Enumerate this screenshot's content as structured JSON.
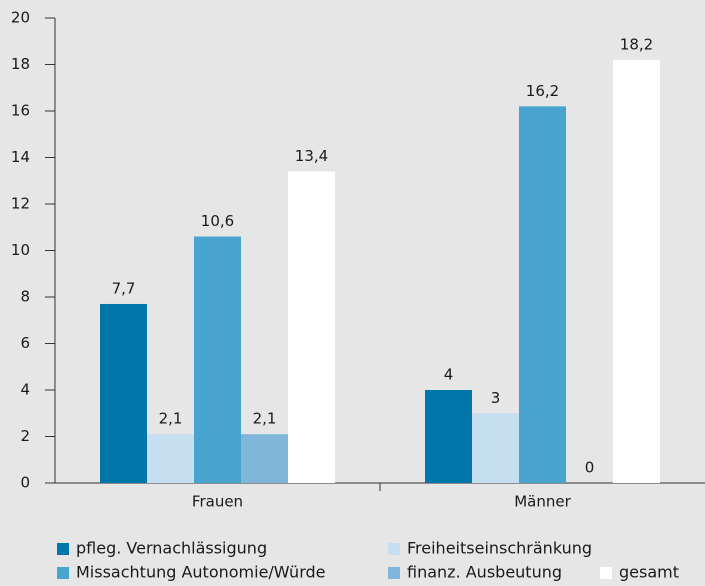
{
  "chart_data": {
    "type": "bar",
    "categories": [
      "Frauen",
      "Männer"
    ],
    "series": [
      {
        "name": "pfleg. Vernachlässigung",
        "color": "#0077a8",
        "values": [
          7.7,
          4
        ],
        "value_labels": [
          "7,7",
          "4"
        ]
      },
      {
        "name": "Freiheitseinschränkung",
        "color": "#c5dff0",
        "values": [
          2.1,
          3
        ],
        "value_labels": [
          "2,1",
          "3"
        ]
      },
      {
        "name": "Missachtung Autonomie/Würde",
        "color": "#48a4cf",
        "values": [
          10.6,
          16.2
        ],
        "value_labels": [
          "10,6",
          "16,2"
        ]
      },
      {
        "name": "finanz. Ausbeutung",
        "color": "#7fb6da",
        "values": [
          2.1,
          0
        ],
        "value_labels": [
          "2,1",
          "0"
        ]
      },
      {
        "name": "gesamt",
        "color": "#ffffff",
        "values": [
          13.4,
          18.2
        ],
        "value_labels": [
          "13,4",
          "18,2"
        ]
      }
    ],
    "ylim": [
      0,
      20
    ],
    "yticks": [
      0,
      2,
      4,
      6,
      8,
      10,
      12,
      14,
      16,
      18,
      20
    ],
    "grid": false
  }
}
